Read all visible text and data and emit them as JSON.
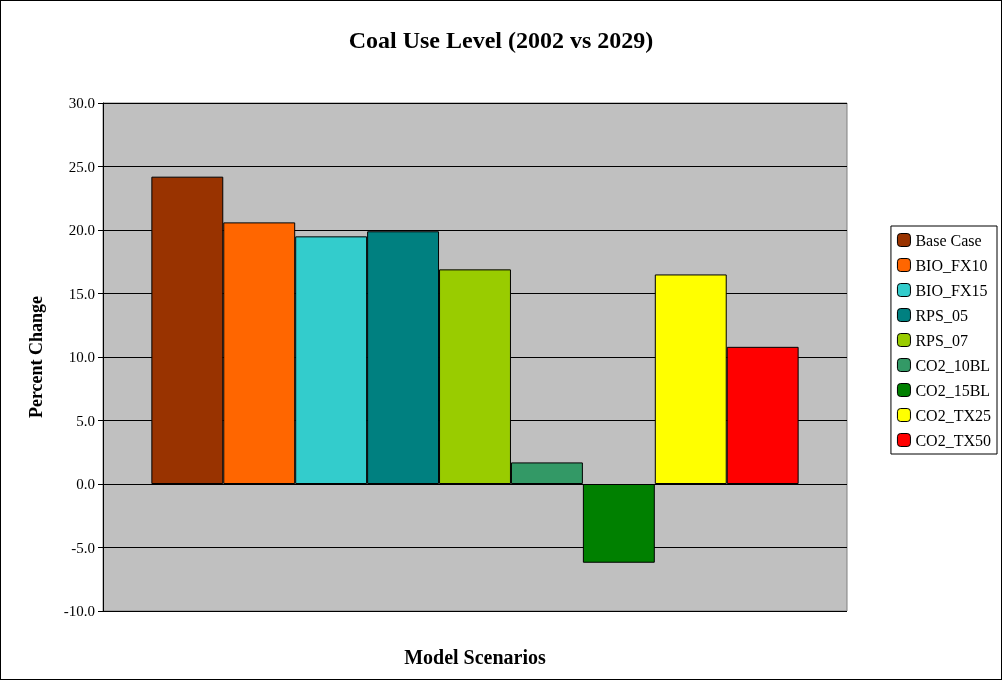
{
  "chart_data": {
    "type": "bar",
    "title": "Coal Use Level (2002 vs 2029)",
    "xlabel": "Model Scenarios",
    "ylabel": "Percent Change",
    "categories": [
      null
    ],
    "series": [
      {
        "name": "Base Case",
        "color": "#993300",
        "values": [
          24.2
        ]
      },
      {
        "name": "BIO_FX10",
        "color": "#ff6600",
        "values": [
          20.6
        ]
      },
      {
        "name": "BIO_FX15",
        "color": "#33cccc",
        "values": [
          19.5
        ]
      },
      {
        "name": "RPS_05",
        "color": "#008080",
        "values": [
          19.9
        ]
      },
      {
        "name": "RPS_07",
        "color": "#99cc00",
        "values": [
          16.9
        ]
      },
      {
        "name": "CO2_10BL",
        "color": "#339966",
        "values": [
          1.7
        ]
      },
      {
        "name": "CO2_15BL",
        "color": "#008000",
        "values": [
          -6.2
        ]
      },
      {
        "name": "CO2_TX25",
        "color": "#ffff00",
        "values": [
          16.5
        ]
      },
      {
        "name": "CO2_TX50",
        "color": "#ff0000",
        "values": [
          10.8
        ]
      }
    ],
    "ylim": [
      -10,
      30
    ],
    "yticks": [
      {
        "value": -10,
        "label": "-10.0"
      },
      {
        "value": -5,
        "label": "-5.0"
      },
      {
        "value": 0,
        "label": "0.0"
      },
      {
        "value": 5,
        "label": "5.0"
      },
      {
        "value": 10,
        "label": "10.0"
      },
      {
        "value": 15,
        "label": "15.0"
      },
      {
        "value": 20,
        "label": "20.0"
      },
      {
        "value": 25,
        "label": "25.0"
      },
      {
        "value": 30,
        "label": "30.0"
      }
    ],
    "grid": "y",
    "legend": "right"
  }
}
